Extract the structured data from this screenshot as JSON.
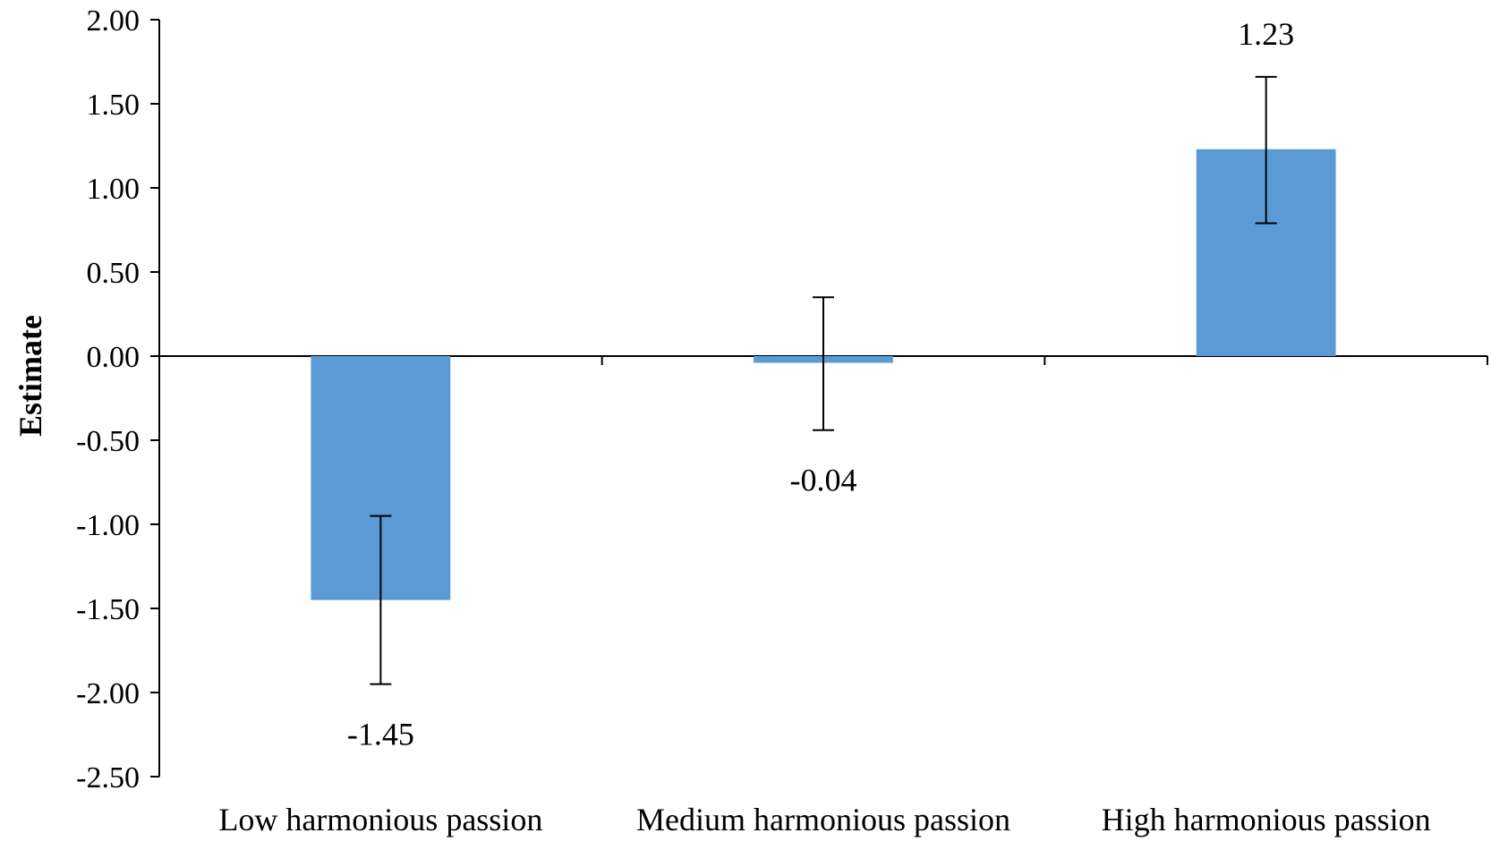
{
  "chart_data": {
    "type": "bar",
    "categories": [
      "Low harmonious passion",
      "Medium harmonious passion",
      "High harmonious passion"
    ],
    "values": [
      -1.45,
      -0.04,
      1.23
    ],
    "value_labels": [
      "-1.45",
      "-0.04",
      "1.23"
    ],
    "error_bars": [
      {
        "low": -1.95,
        "high": -0.95
      },
      {
        "low": -0.44,
        "high": 0.35
      },
      {
        "low": 0.79,
        "high": 1.66
      }
    ],
    "title": "",
    "xlabel": "",
    "ylabel": "Estimate",
    "ylim": [
      -2.5,
      2.0
    ],
    "yticks": [
      2.0,
      1.5,
      1.0,
      0.5,
      0.0,
      -0.5,
      -1.0,
      -1.5,
      -2.0,
      -2.5
    ],
    "ytick_labels": [
      "2.00",
      "1.50",
      "1.00",
      "0.50",
      "0.00",
      "-0.50",
      "-1.00",
      "-1.50",
      "-2.00",
      "-2.50"
    ],
    "grid": false,
    "legend": "none",
    "bar_color": "#5b9bd5",
    "axis_color": "#000000"
  }
}
